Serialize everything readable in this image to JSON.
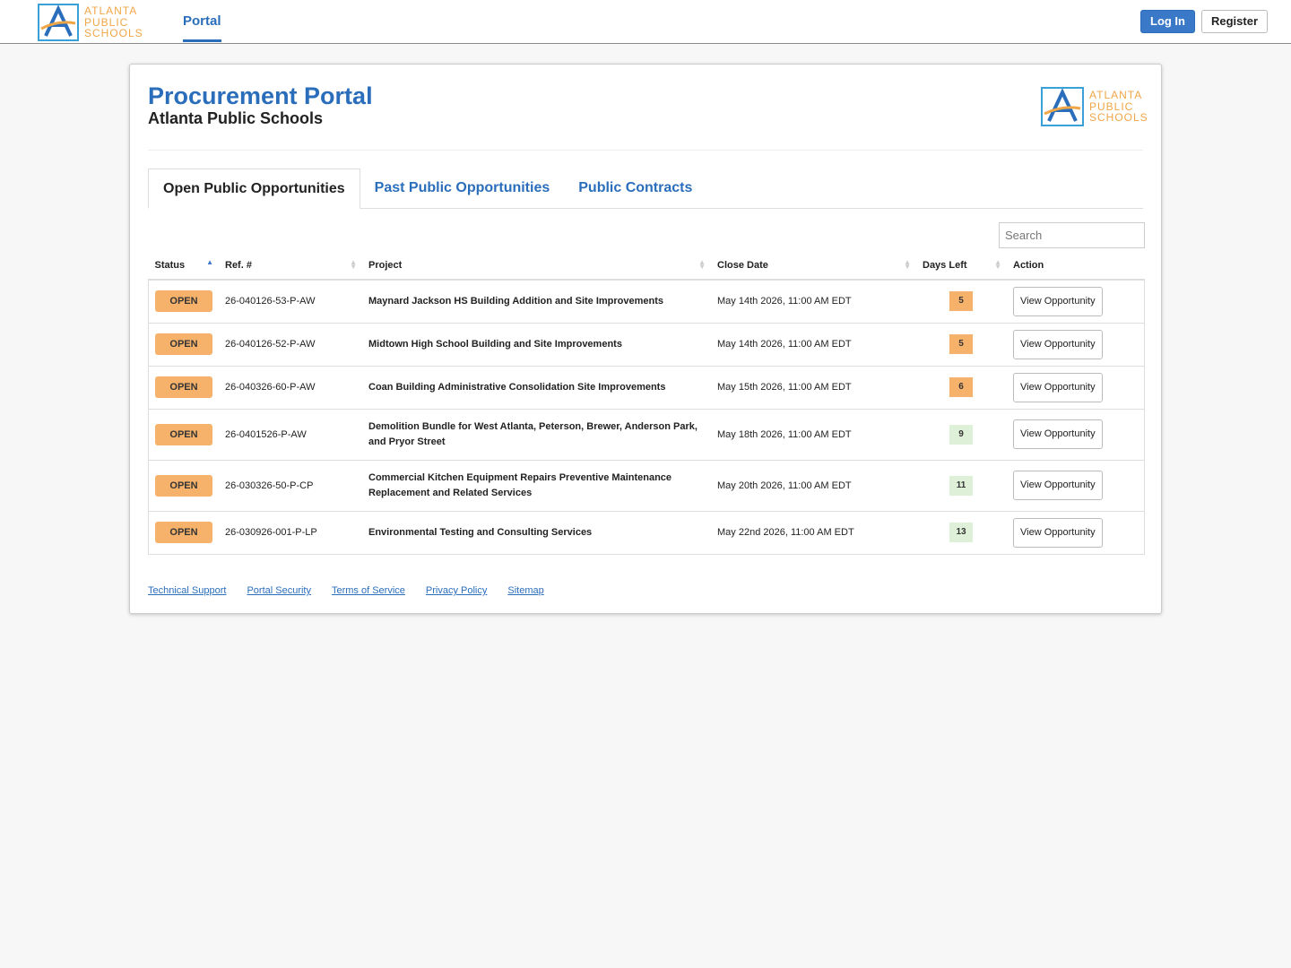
{
  "header": {
    "logo": [
      "ATLANTA",
      "PUBLIC",
      "SCHOOLS"
    ],
    "nav": "Portal",
    "login": "Log In",
    "register": "Register"
  },
  "card": {
    "title": "Procurement Portal",
    "subtitle": "Atlanta Public Schools",
    "logo": [
      "ATLANTA",
      "PUBLIC",
      "SCHOOLS"
    ],
    "tabs": [
      "Open Public Opportunities",
      "Past Public Opportunities",
      "Public Contracts"
    ],
    "search": "Search"
  },
  "table": {
    "columns": [
      "Status",
      "Ref. #",
      "Project",
      "Close Date",
      "Days Left",
      "Action"
    ],
    "rows": [
      {
        "status": "OPEN",
        "ref": "26-040126-53-P-AW",
        "project": "Maynard Jackson HS Building Addition and Site Improvements",
        "close": "May 14th 2026, 11:00 AM EDT",
        "days": 5,
        "days_color": "#f6b26b",
        "action": "View Opportunity"
      },
      {
        "status": "OPEN",
        "ref": "26-040126-52-P-AW",
        "project": "Midtown High School Building and Site Improvements",
        "close": "May 14th 2026, 11:00 AM EDT",
        "days": 5,
        "days_color": "#f6b26b",
        "action": "View Opportunity"
      },
      {
        "status": "OPEN",
        "ref": "26-040326-60-P-AW",
        "project": "Coan Building Administrative Consolidation Site Improvements",
        "close": "May 15th 2026, 11:00 AM EDT",
        "days": 6,
        "days_color": "#f6b26b",
        "action": "View Opportunity"
      },
      {
        "status": "OPEN",
        "ref": "26-0401526-P-AW",
        "project": "Demolition Bundle for West Atlanta, Peterson, Brewer, Anderson Park, and Pryor Street",
        "close": "May 18th 2026, 11:00 AM EDT",
        "days": 9,
        "days_color": "#dff0d8",
        "action": "View Opportunity"
      },
      {
        "status": "OPEN",
        "ref": "26-030326-50-P-CP",
        "project": "Commercial Kitchen Equipment Repairs Preventive Maintenance Replacement and Related Services",
        "close": "May 20th 2026, 11:00 AM EDT",
        "days": 11,
        "days_color": "#dff0d8",
        "action": "View Opportunity"
      },
      {
        "status": "OPEN",
        "ref": "26-030926-001-P-LP",
        "project": "Environmental Testing and Consulting Services",
        "close": "May 22nd 2026, 11:00 AM EDT",
        "days": 13,
        "days_color": "#dff0d8",
        "action": "View Opportunity"
      }
    ]
  },
  "footer": [
    "Technical Support",
    "Portal Security",
    "Terms of Service",
    "Privacy Policy",
    "Sitemap"
  ]
}
